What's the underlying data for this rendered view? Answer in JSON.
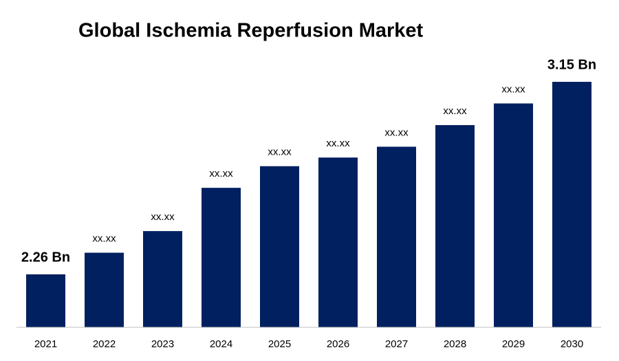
{
  "chart_data": {
    "type": "bar",
    "title": "Global Ischemia Reperfusion Market",
    "categories": [
      "2021",
      "2022",
      "2023",
      "2024",
      "2025",
      "2026",
      "2027",
      "2028",
      "2029",
      "2030"
    ],
    "values": [
      2.26,
      2.36,
      2.46,
      2.66,
      2.76,
      2.8,
      2.85,
      2.95,
      3.05,
      3.15
    ],
    "value_labels": [
      "2.26 Bn",
      "xx.xx",
      "xx.xx",
      "xx.xx",
      "xx.xx",
      "xx.xx",
      "xx.xx",
      "xx.xx",
      "xx.xx",
      "3.15 Bn"
    ],
    "color": "#002060"
  }
}
